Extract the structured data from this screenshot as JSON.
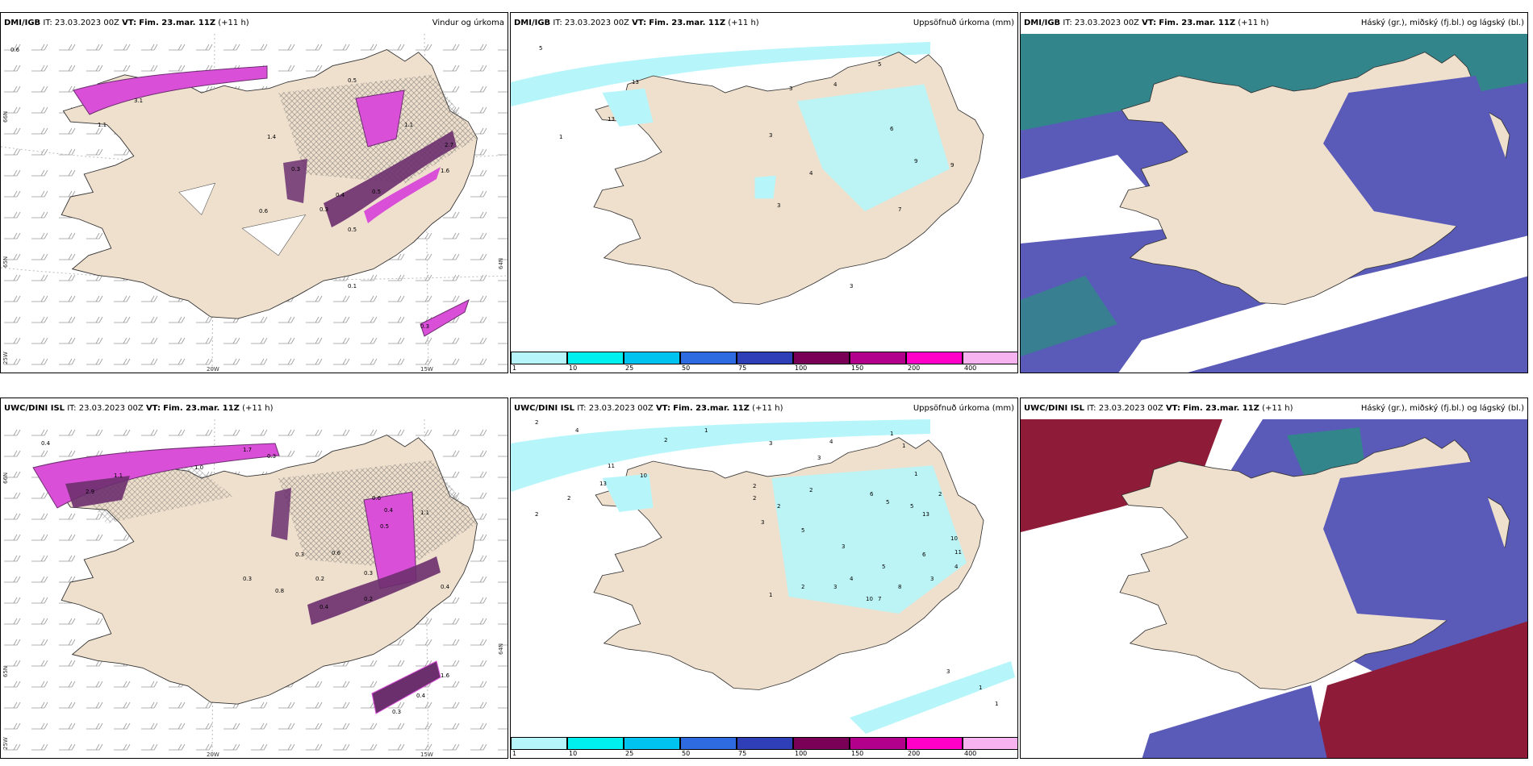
{
  "colors": {
    "land": "#efe0ce",
    "ocean": "#ffffff",
    "precip_light": "#b6f6fa",
    "wind_magenta": "#d94fd8",
    "wind_purple": "#6b2f6e",
    "cloud_high": "#5a5ab8",
    "cloud_teal": "#2f8a87",
    "cloud_red": "#8e1b38"
  },
  "panels": [
    {
      "model": "DMI/IGB",
      "it_label": "IT:",
      "it": "23.03.2023 00Z",
      "vt_label": "VT:",
      "vt": "Fim. 23.mar. 11Z",
      "lead": "(+11 h)",
      "field": "Vindur og úrkoma",
      "lon_labels": [
        "20W",
        "15W"
      ],
      "lat_labels": [
        "66N",
        "65N",
        "64N",
        "25W"
      ],
      "values": [
        "0.6",
        "3.1",
        "1.1",
        "0.5",
        "2.7",
        "0.3",
        "1.6",
        "0.5",
        "0.4",
        "0.3",
        "0.6",
        "0.5",
        "0.3",
        "1.1",
        "1.4",
        "0.1"
      ]
    },
    {
      "model": "DMI/IGB",
      "it_label": "IT:",
      "it": "23.03.2023 00Z",
      "vt_label": "VT:",
      "vt": "Fim. 23.mar. 11Z",
      "lead": "(+11 h)",
      "field": "Uppsöfnuð úrkoma (mm)",
      "values": [
        "5",
        "13",
        "13",
        "1",
        "3",
        "4",
        "5",
        "6",
        "3",
        "4",
        "3",
        "9",
        "9",
        "7",
        "3"
      ],
      "colorbar": {
        "ticks": [
          "1",
          "10",
          "25",
          "50",
          "75",
          "100",
          "150",
          "200",
          "400"
        ],
        "colors": [
          "#b6f6fa",
          "#00f0f0",
          "#00c3f0",
          "#2f6be0",
          "#2f3fb8",
          "#7a0057",
          "#b2008c",
          "#ff00c8",
          "#f7b2f0"
        ]
      }
    },
    {
      "model": "DMI/IGB",
      "it_label": "IT:",
      "it": "23.03.2023 00Z",
      "vt_label": "VT:",
      "vt": "Fim. 23.mar. 11Z",
      "lead": "(+11 h)",
      "field": "Háský (gr.), miðský (fj.bl.) og lágský (bl.)"
    },
    {
      "model": "UWC/DINI ISL",
      "it_label": "IT:",
      "it": "23.03.2023 00Z",
      "vt_label": "VT:",
      "vt": "Fim. 23.mar. 11Z",
      "lead": "(+11 h)",
      "field": "",
      "lon_labels": [
        "20W",
        "15W"
      ],
      "lat_labels": [
        "66N",
        "65N",
        "64N",
        "25W"
      ],
      "values": [
        "0.4",
        "1.7",
        "0.3",
        "1.0",
        "1.1",
        "2.9",
        "0.6",
        "0.4",
        "0.3",
        "0.5",
        "1.1",
        "0.6",
        "0.3",
        "0.2",
        "0.8",
        "0.4",
        "0.2",
        "0.4",
        "1.6",
        "0.4",
        "0.3",
        "0.3"
      ]
    },
    {
      "model": "UWC/DINI ISL",
      "it_label": "IT:",
      "it": "23.03.2023 00Z",
      "vt_label": "VT:",
      "vt": "Fim. 23.mar. 11Z",
      "lead": "(+11 h)",
      "field": "Uppsöfnuð úrkoma (mm)",
      "values": [
        "2",
        "4",
        "1",
        "2",
        "3",
        "4",
        "3",
        "11",
        "10",
        "13",
        "2",
        "2",
        "2",
        "1",
        "1",
        "1",
        "2",
        "2",
        "3",
        "2",
        "5",
        "3",
        "6",
        "5",
        "5",
        "2",
        "13",
        "10",
        "11",
        "4",
        "5",
        "6",
        "10",
        "7",
        "8",
        "3",
        "4",
        "3",
        "2",
        "1",
        "3",
        "1",
        "1"
      ],
      "colorbar": {
        "ticks": [
          "1",
          "10",
          "25",
          "50",
          "75",
          "100",
          "150",
          "200",
          "400"
        ],
        "colors": [
          "#b6f6fa",
          "#00f0f0",
          "#00c3f0",
          "#2f6be0",
          "#2f3fb8",
          "#7a0057",
          "#b2008c",
          "#ff00c8",
          "#f7b2f0"
        ]
      }
    },
    {
      "model": "UWC/DINI ISL",
      "it_label": "IT:",
      "it": "23.03.2023 00Z",
      "vt_label": "VT:",
      "vt": "Fim. 23.mar. 11Z",
      "lead": "(+11 h)",
      "field": "Háský (gr.), miðský (fj.bl.) og lágský (bl.)"
    }
  ]
}
